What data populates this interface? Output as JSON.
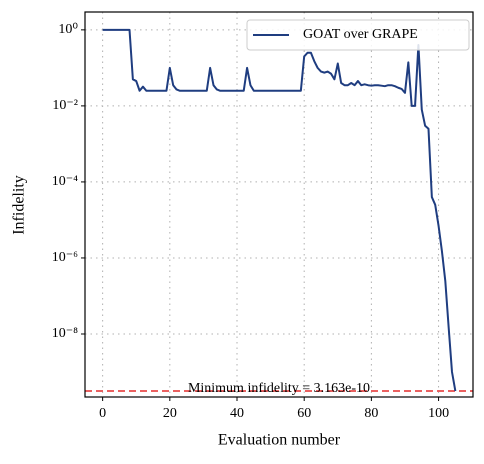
{
  "chart_data": {
    "type": "line",
    "yscale": "log",
    "grid": true,
    "legend": "upper right",
    "xlabel": "Evaluation number",
    "ylabel": "Infidelity",
    "x": [
      0,
      1,
      2,
      3,
      4,
      5,
      6,
      7,
      8,
      9,
      10,
      11,
      12,
      13,
      14,
      15,
      16,
      17,
      18,
      19,
      20,
      21,
      22,
      23,
      24,
      25,
      26,
      27,
      28,
      29,
      30,
      31,
      32,
      33,
      34,
      35,
      36,
      37,
      38,
      39,
      40,
      41,
      42,
      43,
      44,
      45,
      46,
      47,
      48,
      49,
      50,
      51,
      52,
      53,
      54,
      55,
      56,
      57,
      58,
      59,
      60,
      61,
      62,
      63,
      64,
      65,
      66,
      67,
      68,
      69,
      70,
      71,
      72,
      73,
      74,
      75,
      76,
      77,
      78,
      79,
      80,
      81,
      82,
      83,
      84,
      85,
      86,
      87,
      88,
      89,
      90,
      91,
      92,
      93,
      94,
      95,
      96,
      97,
      98,
      99,
      100,
      101,
      102,
      103,
      104,
      105
    ],
    "series": [
      {
        "name": "GOAT over GRAPE",
        "color": "#1f3d80",
        "values": [
          1,
          1,
          1,
          1,
          1,
          1,
          1,
          1,
          1,
          0.05,
          0.045,
          0.025,
          0.032,
          0.025,
          0.025,
          0.025,
          0.025,
          0.025,
          0.025,
          0.025,
          0.1,
          0.035,
          0.027,
          0.025,
          0.025,
          0.025,
          0.025,
          0.025,
          0.025,
          0.025,
          0.025,
          0.025,
          0.1,
          0.035,
          0.027,
          0.025,
          0.025,
          0.025,
          0.025,
          0.025,
          0.025,
          0.025,
          0.025,
          0.1,
          0.035,
          0.025,
          0.025,
          0.025,
          0.025,
          0.025,
          0.025,
          0.025,
          0.025,
          0.025,
          0.025,
          0.025,
          0.025,
          0.025,
          0.025,
          0.025,
          0.2,
          0.25,
          0.25,
          0.15,
          0.1,
          0.08,
          0.075,
          0.08,
          0.07,
          0.05,
          0.13,
          0.04,
          0.035,
          0.035,
          0.04,
          0.035,
          0.045,
          0.035,
          0.037,
          0.035,
          0.034,
          0.035,
          0.035,
          0.034,
          0.033,
          0.035,
          0.035,
          0.033,
          0.03,
          0.028,
          0.022,
          0.14,
          0.01,
          0.01,
          0.4,
          0.008,
          0.003,
          0.0025,
          4e-05,
          2.5e-05,
          7e-06,
          1.5e-06,
          2.5e-07,
          1.5e-08,
          1e-09,
          3.163e-10
        ]
      }
    ],
    "annotations": [
      {
        "text": "Minimum infidelity = 3.163e-10",
        "y": 3.163e-10,
        "color": "#e8504f"
      }
    ],
    "xlim": [
      -5.25,
      110.25
    ],
    "xticks": [
      0,
      20,
      40,
      60,
      80,
      100
    ],
    "ylim": [
      2.2e-10,
      2.95
    ],
    "yticks": [
      {
        "value": 1,
        "label": "10⁰"
      },
      {
        "value": 0.01,
        "label": "10⁻²"
      },
      {
        "value": 0.0001,
        "label": "10⁻⁴"
      },
      {
        "value": 1e-06,
        "label": "10⁻⁶"
      },
      {
        "value": 1e-08,
        "label": "10⁻⁸"
      }
    ]
  }
}
